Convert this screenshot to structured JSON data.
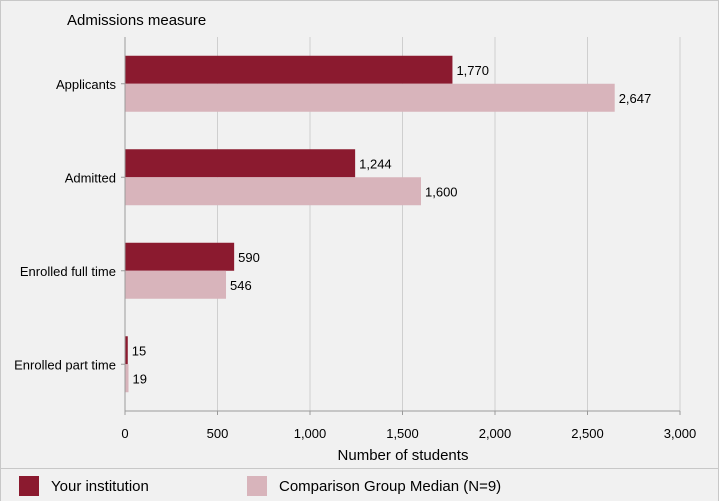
{
  "chart_data": {
    "type": "bar",
    "orientation": "horizontal",
    "title": "Admissions measure",
    "xlabel": "Number of students",
    "ylabel": "Admissions measure",
    "xlim": [
      0,
      3000
    ],
    "xticks": [
      0,
      500,
      1000,
      1500,
      2000,
      2500,
      3000
    ],
    "xtick_labels": [
      "0",
      "500",
      "1,000",
      "1,500",
      "2,000",
      "2,500",
      "3,000"
    ],
    "grid": true,
    "legend_position": "bottom",
    "categories": [
      "Applicants",
      "Admitted",
      "Enrolled full time",
      "Enrolled part time"
    ],
    "series": [
      {
        "name": "Your institution",
        "color": "#8b1a2f",
        "values": [
          1770,
          1244,
          590,
          15
        ],
        "labels": [
          "1,770",
          "1,244",
          "590",
          "15"
        ]
      },
      {
        "name": "Comparison Group Median (N=9)",
        "color": "#d8b4bb",
        "values": [
          2647,
          1600,
          546,
          19
        ],
        "labels": [
          "2,647",
          "1,600",
          "546",
          "19"
        ]
      }
    ]
  }
}
